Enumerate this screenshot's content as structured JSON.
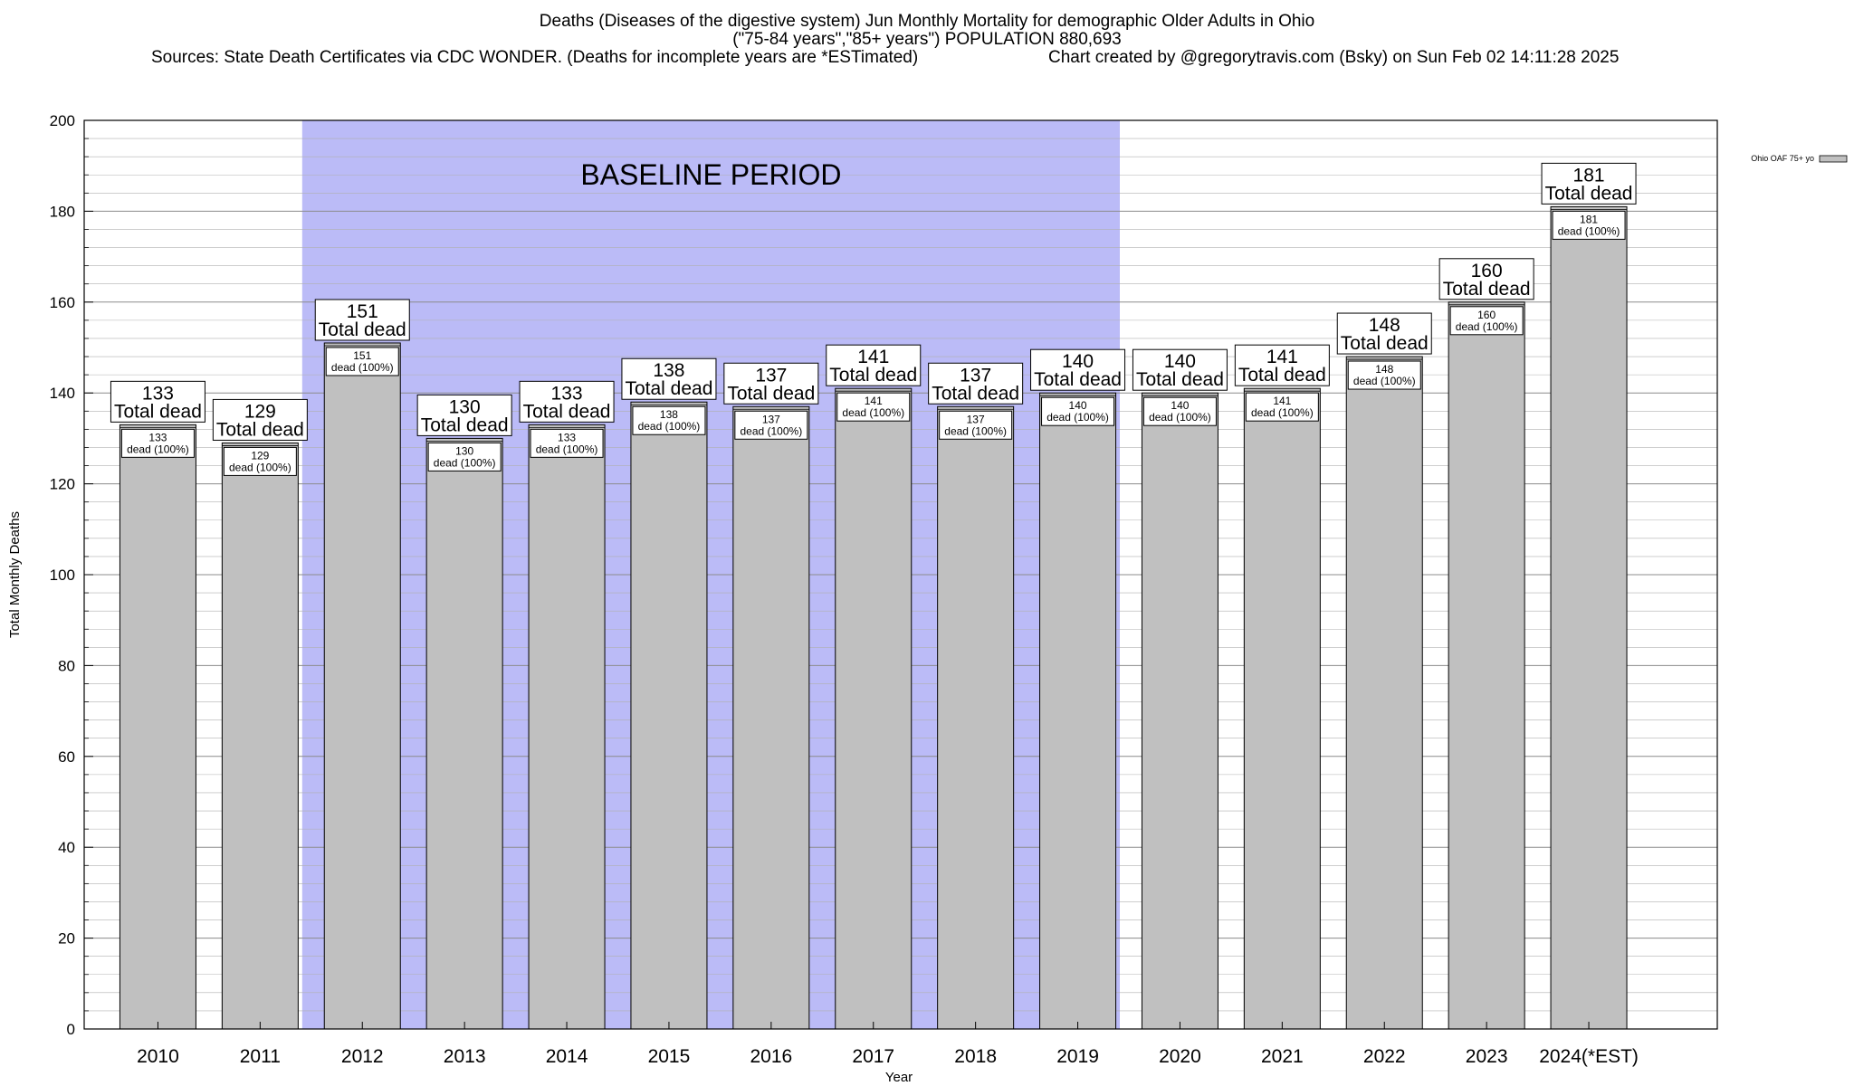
{
  "title": {
    "line1": "Deaths (Diseases of the digestive system) Jun Monthly Mortality for demographic Older Adults in Ohio",
    "line2": "(\"75-84 years\",\"85+ years\") POPULATION 880,693",
    "sources": "Sources: State Death Certificates via CDC WONDER. (Deaths for incomplete years are *ESTimated)",
    "credit": "Chart created by @gregorytravis.com (Bsky) on Sun Feb 02 14:11:28 2025"
  },
  "legend": {
    "label": "Ohio OAF 75+ yo"
  },
  "baseline": {
    "label": "BASELINE PERIOD",
    "start": "2012",
    "end": "2019"
  },
  "colors": {
    "bar": "#c0c0c0",
    "baseline": "#bbbbf7",
    "grid": "#b0b0b0"
  },
  "bar_label": {
    "top_suffix": "Total dead",
    "inner_suffix": "dead (100%)"
  },
  "chart_data": {
    "type": "bar",
    "categories": [
      "2010",
      "2011",
      "2012",
      "2013",
      "2014",
      "2015",
      "2016",
      "2017",
      "2018",
      "2019",
      "2020",
      "2021",
      "2022",
      "2023",
      "2024(*EST)"
    ],
    "values": [
      133,
      129,
      151,
      130,
      133,
      138,
      137,
      141,
      137,
      140,
      140,
      141,
      148,
      160,
      181
    ],
    "xlabel": "Year",
    "ylabel": "Total Monthly Deaths",
    "ylim": [
      0,
      200
    ],
    "yticks": [
      0,
      20,
      40,
      60,
      80,
      100,
      120,
      140,
      160,
      180,
      200
    ],
    "grid": true,
    "legend_position": "top-right"
  }
}
